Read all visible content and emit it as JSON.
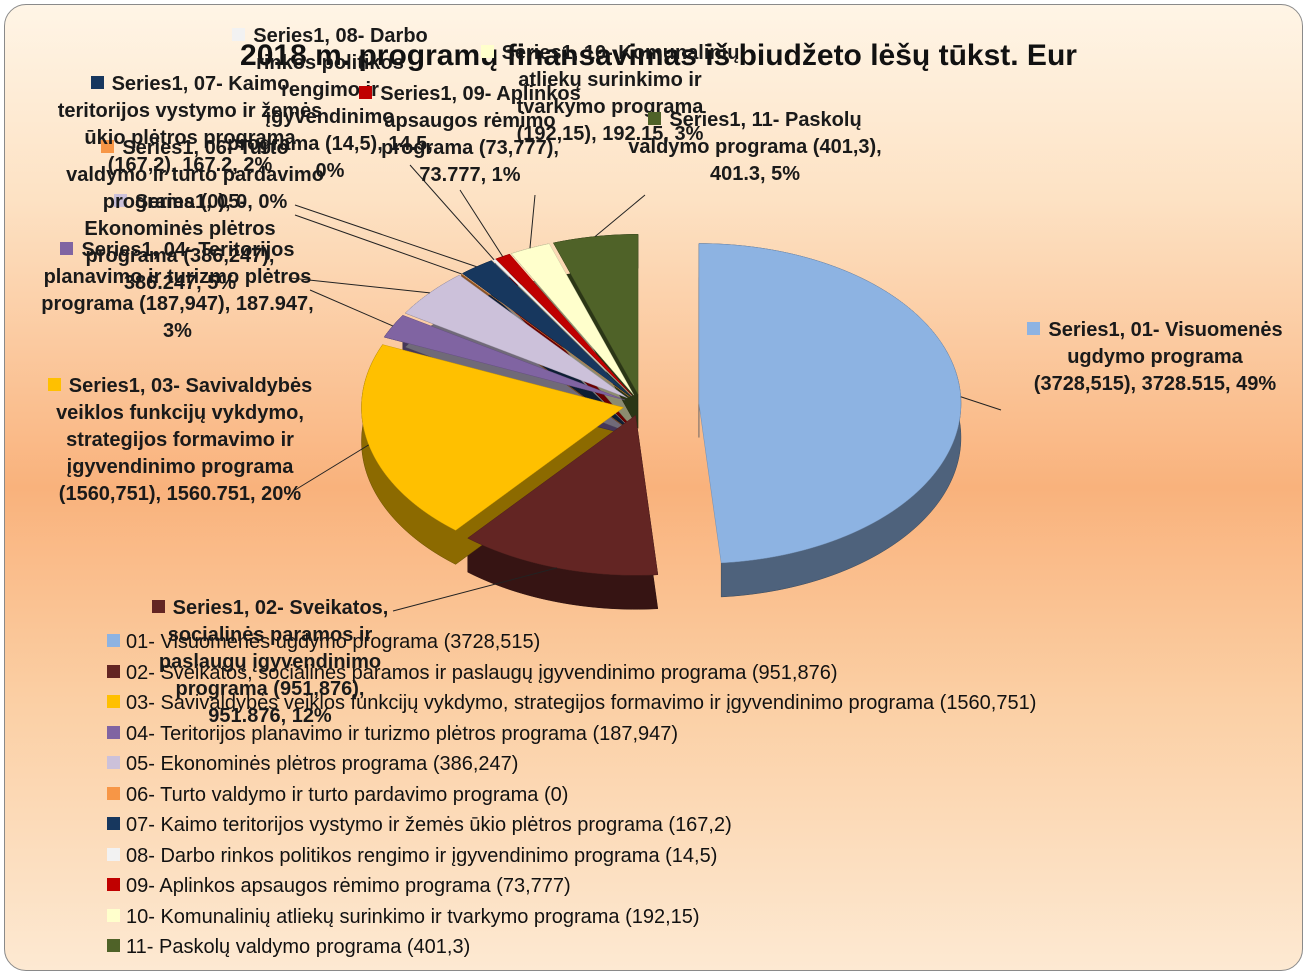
{
  "chart_data": {
    "type": "pie",
    "title": "2018 m. programų finansavimas iš biudžeto lėšų tūkst. Eur",
    "categories": [
      "01- Visuomenės ugdymo programa (3728,515)",
      "02- Sveikatos, socialinės paramos ir paslaugų įgyvendinimo programa (951,876)",
      "03- Savivaldybės veiklos funkcijų vykdymo, strategijos formavimo ir įgyvendinimo programa (1560,751)",
      "04- Teritorijos planavimo ir turizmo plėtros programa (187,947)",
      "05- Ekonominės plėtros programa (386,247)",
      "06- Turto valdymo ir turto pardavimo programa (0)",
      "07- Kaimo teritorijos vystymo ir žemės ūkio plėtros programa (167,2)",
      "08- Darbo rinkos politikos rengimo ir įgyvendinimo programa (14,5)",
      "09- Aplinkos apsaugos rėmimo programa (73,777)",
      "10- Komunalinių atliekų surinkimo ir tvarkymo programa (192,15)",
      "11- Paskolų valdymo programa (401,3)"
    ],
    "values": [
      3728.515,
      951.876,
      1560.751,
      187.947,
      386.247,
      0,
      167.2,
      14.5,
      73.777,
      192.15,
      401.3
    ],
    "value_labels": [
      "Series1, 01- Visuomenės ugdymo programa (3728,515), 3728.515, 49%",
      "Series1, 02- Sveikatos, socialinės paramos ir paslaugų įgyvendinimo programa (951,876), 951.876, 12%",
      "Series1, 03- Savivaldybės veiklos funkcijų vykdymo, strategijos formavimo ir įgyvendinimo programa (1560,751), 1560.751, 20%",
      "Series1, 04- Teritorijos planavimo ir turizmo plėtros programa (187,947), 187.947, 3%",
      "Series1, 05- Ekonominės plėtros programa (386,247), 386.247, 5%",
      "Series1, 06- Turto valdymo ir turto pardavimo programa (0), 0, 0%",
      "Series1, 07- Kaimo teritorijos vystymo ir žemės ūkio plėtros programa (167,2), 167.2, 2%",
      "Series1, 08- Darbo rinkos politikos rengimo ir įgyvendinimo programa (14,5), 14.5, 0%",
      "Series1, 09- Aplinkos apsaugos rėmimo programa (73,777), 73.777, 1%",
      "Series1, 10- Komunalinių atliekų surinkimo ir tvarkymo programa (192,15), 192.15, 3%",
      "Series1, 11- Paskolų valdymo programa (401,3), 401.3, 5%"
    ],
    "colors": [
      "#8db3e2",
      "#632523",
      "#ffc000",
      "#8064a2",
      "#ccc1da",
      "#f79646",
      "#17375e",
      "#f2f2f2",
      "#c00000",
      "#ffffcc",
      "#4f6228"
    ],
    "legend": "bottom"
  }
}
